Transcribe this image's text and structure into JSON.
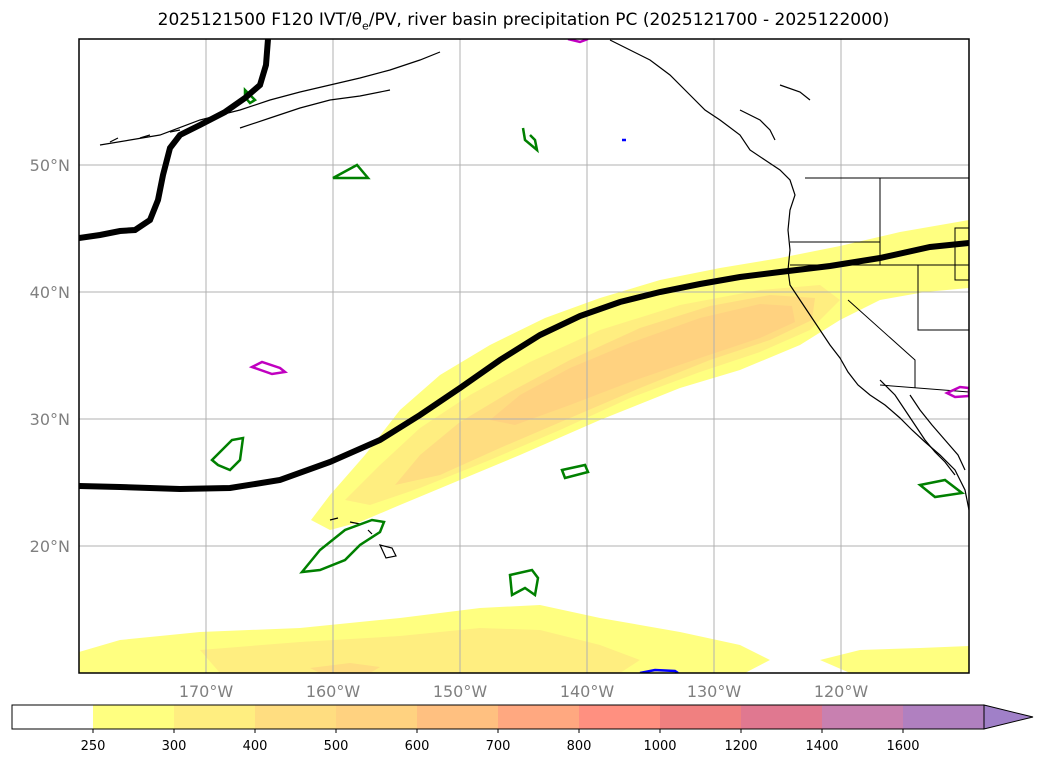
{
  "title": {
    "prefix": "2025121500 F120 IVT/θ",
    "sub": "e",
    "suffix": "/PV, river basin precipitation PC (2025121700 - 2025122000)"
  },
  "map": {
    "lat_labels": [
      "50°N",
      "40°N",
      "30°N",
      "20°N"
    ],
    "lon_labels": [
      "170°W",
      "160°W",
      "150°W",
      "140°W",
      "130°W",
      "120°W"
    ],
    "fill_colors": {
      "ivt_250": "#ffff80",
      "ivt_300": "#ffee80",
      "ivt_400": "#ffdd80",
      "ivt_500": "#ffd280"
    },
    "line_colors": {
      "pv_contour": "#000000",
      "theta_green": "#008000",
      "theta_magenta": "#c000c0",
      "blue": "#0000ff",
      "coast": "#000000",
      "grid": "#b0b0b0"
    }
  },
  "colorbar": {
    "levels": [
      "250",
      "300",
      "400",
      "500",
      "600",
      "700",
      "800",
      "1000",
      "1200",
      "1400",
      "1600"
    ],
    "colors": [
      "#ffffff",
      "#ffff80",
      "#ffee80",
      "#ffdd80",
      "#ffd280",
      "#ffc080",
      "#ffa880",
      "#ff9080",
      "#f08080",
      "#e07890",
      "#c880b0",
      "#b080c0",
      "#a080c8"
    ]
  }
}
